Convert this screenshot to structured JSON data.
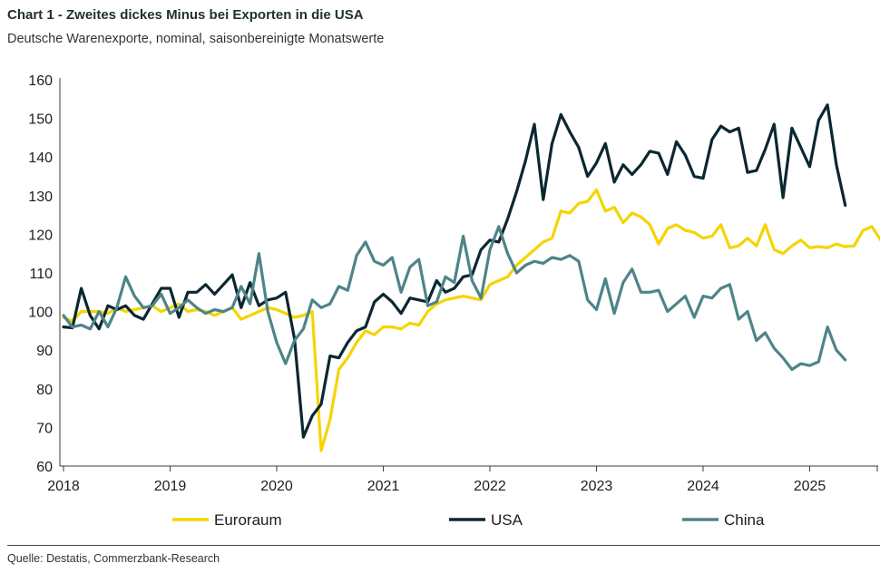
{
  "title": "Chart 1 - Zweites dickes Minus bei Exporten in die USA",
  "subtitle": "Deutsche Warenexporte, nominal, saisonbereinigte Monatswerte",
  "source": "Quelle: Destatis, Commerzbank-Research",
  "chart_data": {
    "type": "line",
    "x_start": "2018-01",
    "xticks": [
      "2018",
      "2019",
      "2020",
      "2021",
      "2022",
      "2023",
      "2024",
      "2025"
    ],
    "ylim": [
      60,
      160
    ],
    "yticks": [
      60,
      70,
      80,
      90,
      100,
      110,
      120,
      130,
      140,
      150,
      160
    ],
    "legend_position": "bottom",
    "grid": false,
    "series": [
      {
        "name": "Euroraum",
        "color": "#f5d400",
        "values": [
          98.5,
          97.5,
          100,
          100,
          100,
          99.5,
          101,
          100,
          100.5,
          101,
          101.5,
          100,
          101,
          102,
          100,
          100.5,
          100,
          99,
          100,
          101,
          98,
          99,
          100,
          101,
          100.5,
          99.5,
          98.5,
          99,
          100,
          64,
          72,
          85,
          88,
          92,
          95,
          94,
          96,
          96,
          95.5,
          97,
          96.5,
          100,
          102,
          103,
          103.5,
          104,
          103.5,
          103,
          107,
          108,
          109,
          112,
          114,
          116,
          118,
          119,
          126,
          125.5,
          128,
          128.5,
          131.5,
          126,
          127,
          123,
          125.5,
          124.5,
          122.5,
          117.5,
          121.5,
          122.5,
          121,
          120.5,
          119,
          119.5,
          122.5,
          116.5,
          117,
          119,
          117,
          122.5,
          116,
          115,
          117,
          118.5,
          116.5,
          116.8,
          116.5,
          117.5,
          116.8,
          117,
          121,
          122,
          118.5
        ]
      },
      {
        "name": "USA",
        "color": "#0b2730",
        "values": [
          96,
          95.8,
          106,
          99,
          95.5,
          101.5,
          100.5,
          101.5,
          99,
          98,
          102,
          106,
          106,
          98.5,
          105,
          105,
          107,
          104.5,
          107,
          109.5,
          101,
          107.5,
          101.5,
          103,
          103.5,
          105,
          93,
          67.5,
          73,
          76,
          88.5,
          88,
          92,
          95,
          96,
          102.5,
          104.5,
          102.5,
          99.5,
          103.5,
          103,
          102.5,
          108,
          105,
          106,
          109,
          109.5,
          116,
          118.5,
          118,
          124,
          131,
          139,
          148.5,
          129,
          143.5,
          151,
          146.5,
          142.5,
          135,
          138.5,
          143.5,
          133.5,
          138,
          135.5,
          138,
          141.5,
          141,
          135.5,
          144,
          140.5,
          135,
          134.5,
          144.5,
          148,
          146.5,
          147.5,
          136,
          136.5,
          142,
          148.5,
          129.5,
          147.5,
          142.5,
          137.5,
          149.5,
          153.5,
          138,
          127.5
        ]
      },
      {
        "name": "China",
        "color": "#4e8489",
        "values": [
          99,
          96,
          96.5,
          95.5,
          100,
          96,
          101,
          109,
          104,
          101,
          101.5,
          104.5,
          99.5,
          101,
          103,
          101,
          99.5,
          100.5,
          100,
          101,
          106.5,
          102,
          115,
          100,
          92,
          86.5,
          92.5,
          95.5,
          103,
          101,
          102,
          106.5,
          105.5,
          114.5,
          118,
          113,
          112,
          114,
          105,
          111.5,
          113.5,
          101.5,
          102.5,
          109,
          107.5,
          119.5,
          108,
          103.5,
          116,
          122,
          115,
          110,
          112,
          113,
          112.5,
          114,
          113.5,
          114.5,
          113,
          103,
          100.5,
          108.5,
          99.5,
          107.5,
          111,
          105,
          105,
          105.5,
          100,
          102,
          104,
          98.5,
          104,
          103.5,
          106,
          107,
          98,
          100,
          92.5,
          94.5,
          90.5,
          88,
          85,
          86.5,
          86,
          87,
          96,
          90,
          87.5
        ]
      }
    ]
  }
}
